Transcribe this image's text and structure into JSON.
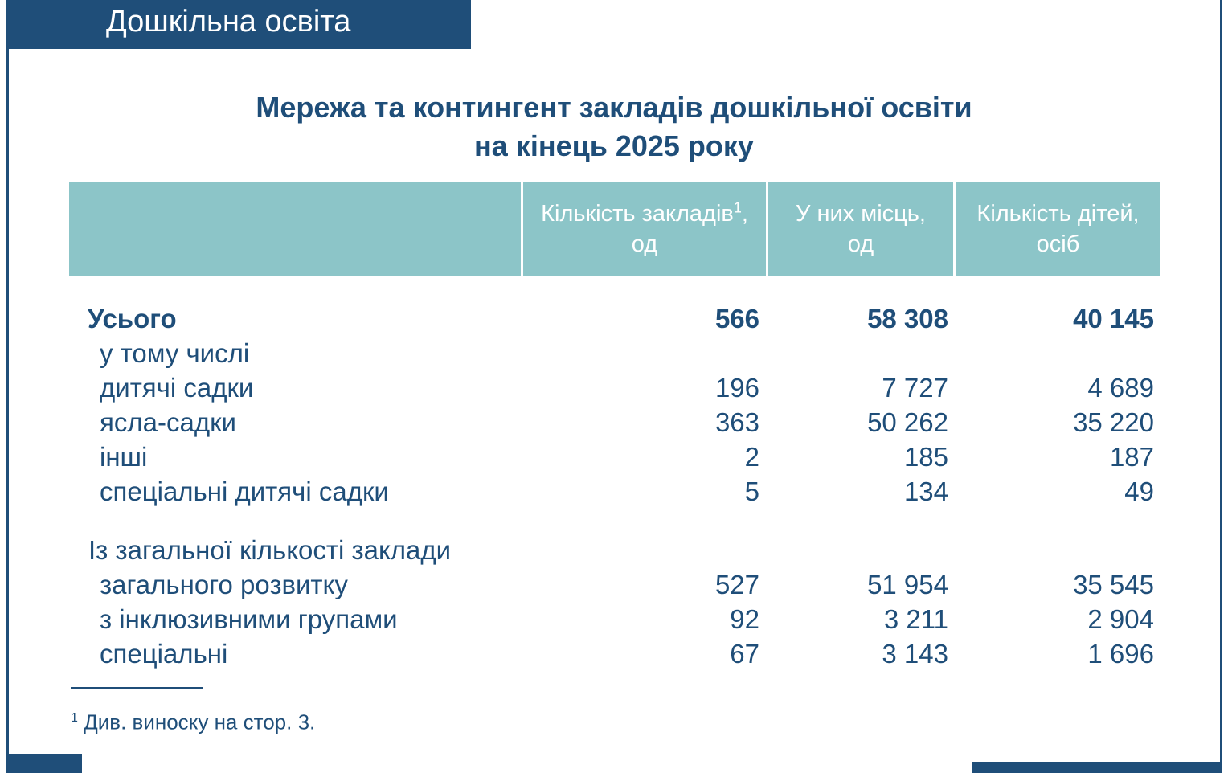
{
  "section": {
    "label": "Дошкільна освіта"
  },
  "title": {
    "line1": "Мережа та контингент закладів дошкільної освіти",
    "line2": "на кінець 2025 року"
  },
  "table": {
    "headers": [
      {
        "label": "",
        "unit": ""
      },
      {
        "label": "Кількість закладів",
        "sup": "1",
        "suffix": ",",
        "unit": "од"
      },
      {
        "label": "У них місць,",
        "unit": "од"
      },
      {
        "label": "Кількість дітей,",
        "unit": "осіб"
      }
    ],
    "rows": [
      {
        "label": "Усього",
        "values": [
          "566",
          "58 308",
          "40 145"
        ]
      },
      {
        "label": "у тому числі",
        "values": [
          "",
          "",
          ""
        ]
      },
      {
        "label": "дитячі садки",
        "values": [
          "196",
          "7 727",
          "4 689"
        ]
      },
      {
        "label": "ясла-садки",
        "values": [
          "363",
          "50 262",
          "35 220"
        ]
      },
      {
        "label": "інші",
        "values": [
          "2",
          "185",
          "187"
        ]
      },
      {
        "label": "спеціальні дитячі садки",
        "values": [
          "5",
          "134",
          "49"
        ]
      },
      {
        "label": "Із загальної кількості заклади",
        "values": [
          "",
          "",
          ""
        ]
      },
      {
        "label": "загального розвитку",
        "values": [
          "527",
          "51 954",
          "35 545"
        ]
      },
      {
        "label": "з інклюзивними групами",
        "values": [
          "92",
          "3 211",
          "2 904"
        ]
      },
      {
        "label": "спеціальні",
        "values": [
          "67",
          "3 143",
          "1 696"
        ]
      }
    ]
  },
  "footnote": {
    "mark": "1",
    "text": " Див. виноску на стор. 3."
  },
  "colors": {
    "primary": "#1f4e79",
    "header_bg": "#8cc5c8",
    "header_text": "#ffffff"
  }
}
